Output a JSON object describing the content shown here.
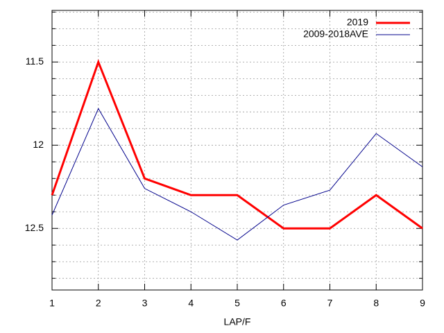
{
  "chart_data": {
    "type": "line",
    "x_label": "LAP/F",
    "x": [
      1,
      2,
      3,
      4,
      5,
      6,
      7,
      8,
      9
    ],
    "series": [
      {
        "name": "2019",
        "color": "#ff0000",
        "values": [
          12.3,
          11.5,
          12.2,
          12.3,
          12.3,
          12.5,
          12.5,
          12.3,
          12.5
        ]
      },
      {
        "name": "2009-2018AVE",
        "color": "#00008b",
        "values": [
          12.42,
          11.78,
          12.26,
          12.4,
          12.57,
          12.36,
          12.27,
          11.93,
          12.13
        ]
      }
    ],
    "xlim": [
      1,
      9
    ],
    "xticks": [
      1,
      2,
      3,
      4,
      5,
      6,
      7,
      8,
      9
    ],
    "ylim": [
      12.87,
      11.19
    ],
    "yticks": [
      11.5,
      12,
      12.5
    ],
    "y_minor_ticks": [
      11.2,
      11.3,
      11.4,
      11.6,
      11.7,
      11.8,
      11.9,
      12.1,
      12.2,
      12.3,
      12.4,
      12.6,
      12.7,
      12.8
    ],
    "grid": true,
    "legend": "top-right"
  }
}
